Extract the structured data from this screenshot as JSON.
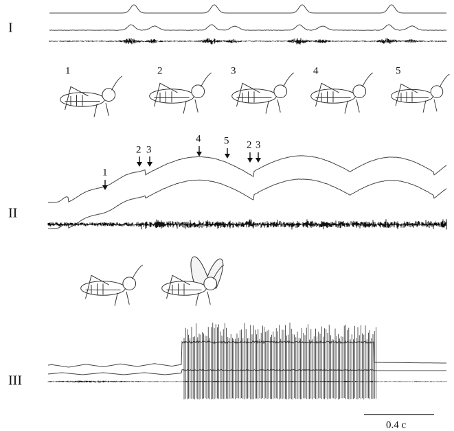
{
  "section_labels": [
    "I",
    "II",
    "III"
  ],
  "phase_labels": [
    "1",
    "2",
    "3",
    "4",
    "5"
  ],
  "arrow_labels": [
    "1",
    "2",
    "3",
    "4",
    "5",
    "2",
    "3"
  ],
  "scale_bar_label": "0.4 c"
}
